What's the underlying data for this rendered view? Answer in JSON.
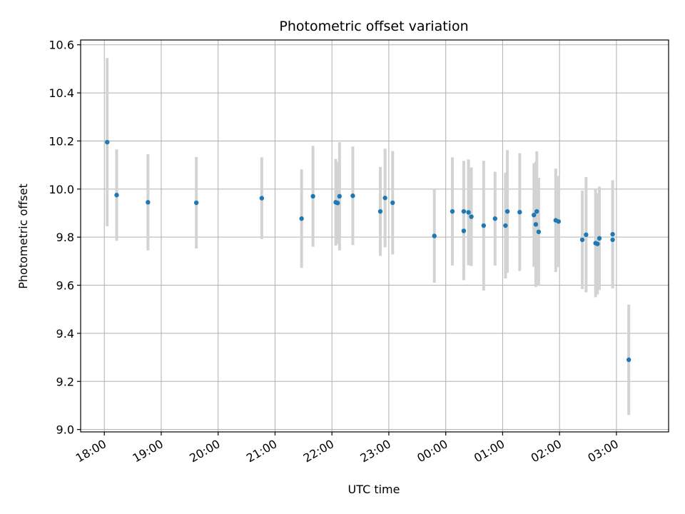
{
  "chart_data": {
    "type": "scatter",
    "title": "Photometric offset variation",
    "xlabel": "UTC time",
    "ylabel": "Photometric offset",
    "grid": true,
    "legend": "none",
    "x_range": [
      "2000-01-01T17:35",
      "2000-01-02T03:55"
    ],
    "ylim": [
      8.99,
      10.62
    ],
    "x_ticks": [
      {
        "t": "2000-01-01T18:00",
        "label": "18:00"
      },
      {
        "t": "2000-01-01T19:00",
        "label": "19:00"
      },
      {
        "t": "2000-01-01T20:00",
        "label": "20:00"
      },
      {
        "t": "2000-01-01T21:00",
        "label": "21:00"
      },
      {
        "t": "2000-01-01T22:00",
        "label": "22:00"
      },
      {
        "t": "2000-01-01T23:00",
        "label": "23:00"
      },
      {
        "t": "2000-01-02T00:00",
        "label": "00:00"
      },
      {
        "t": "2000-01-02T01:00",
        "label": "01:00"
      },
      {
        "t": "2000-01-02T02:00",
        "label": "02:00"
      },
      {
        "t": "2000-01-02T03:00",
        "label": "03:00"
      }
    ],
    "y_ticks": [
      {
        "v": 9.0,
        "label": "9.0"
      },
      {
        "v": 9.2,
        "label": "9.2"
      },
      {
        "v": 9.4,
        "label": "9.4"
      },
      {
        "v": 9.6,
        "label": "9.6"
      },
      {
        "v": 9.8,
        "label": "9.8"
      },
      {
        "v": 10.0,
        "label": "10.0"
      },
      {
        "v": 10.2,
        "label": "10.2"
      },
      {
        "v": 10.4,
        "label": "10.4"
      },
      {
        "v": 10.6,
        "label": "10.6"
      }
    ],
    "colors": {
      "point": "#1f77b4",
      "errorbar": "#d3d3d3",
      "grid": "#b0b0b0"
    },
    "points": [
      {
        "t": "2000-01-01T18:03",
        "y": 10.195,
        "yerr": 0.35
      },
      {
        "t": "2000-01-01T18:13",
        "y": 9.975,
        "yerr": 0.19
      },
      {
        "t": "2000-01-01T18:46",
        "y": 9.945,
        "yerr": 0.2
      },
      {
        "t": "2000-01-01T19:37",
        "y": 9.943,
        "yerr": 0.19
      },
      {
        "t": "2000-01-01T20:46",
        "y": 9.962,
        "yerr": 0.17
      },
      {
        "t": "2000-01-01T21:28",
        "y": 9.877,
        "yerr": 0.205
      },
      {
        "t": "2000-01-01T21:40",
        "y": 9.97,
        "yerr": 0.21
      },
      {
        "t": "2000-01-01T22:04",
        "y": 9.945,
        "yerr": 0.18
      },
      {
        "t": "2000-01-01T22:06",
        "y": 9.942,
        "yerr": 0.17
      },
      {
        "t": "2000-01-01T22:08",
        "y": 9.97,
        "yerr": 0.225
      },
      {
        "t": "2000-01-01T22:22",
        "y": 9.972,
        "yerr": 0.205
      },
      {
        "t": "2000-01-01T22:51",
        "y": 9.907,
        "yerr": 0.185
      },
      {
        "t": "2000-01-01T22:56",
        "y": 9.963,
        "yerr": 0.205
      },
      {
        "t": "2000-01-01T23:04",
        "y": 9.943,
        "yerr": 0.215
      },
      {
        "t": "2000-01-01T23:48",
        "y": 9.805,
        "yerr": 0.195
      },
      {
        "t": "2000-01-02T00:07",
        "y": 9.907,
        "yerr": 0.225
      },
      {
        "t": "2000-01-02T00:19",
        "y": 9.907,
        "yerr": 0.21
      },
      {
        "t": "2000-01-02T00:19",
        "y": 9.826,
        "yerr": 0.205
      },
      {
        "t": "2000-01-02T00:24",
        "y": 9.903,
        "yerr": 0.22
      },
      {
        "t": "2000-01-02T00:27",
        "y": 9.885,
        "yerr": 0.205
      },
      {
        "t": "2000-01-02T00:40",
        "y": 9.848,
        "yerr": 0.27
      },
      {
        "t": "2000-01-02T00:52",
        "y": 9.877,
        "yerr": 0.195
      },
      {
        "t": "2000-01-02T01:03",
        "y": 9.848,
        "yerr": 0.22
      },
      {
        "t": "2000-01-02T01:05",
        "y": 9.907,
        "yerr": 0.255
      },
      {
        "t": "2000-01-02T01:18",
        "y": 9.904,
        "yerr": 0.245
      },
      {
        "t": "2000-01-02T01:33",
        "y": 9.892,
        "yerr": 0.215
      },
      {
        "t": "2000-01-02T01:35",
        "y": 9.853,
        "yerr": 0.26
      },
      {
        "t": "2000-01-02T01:36",
        "y": 9.907,
        "yerr": 0.25
      },
      {
        "t": "2000-01-02T01:38",
        "y": 9.822,
        "yerr": 0.225
      },
      {
        "t": "2000-01-02T01:56",
        "y": 9.87,
        "yerr": 0.215
      },
      {
        "t": "2000-01-02T01:59",
        "y": 9.865,
        "yerr": 0.19
      },
      {
        "t": "2000-01-02T02:24",
        "y": 9.789,
        "yerr": 0.205
      },
      {
        "t": "2000-01-02T02:28",
        "y": 9.81,
        "yerr": 0.24
      },
      {
        "t": "2000-01-02T02:38",
        "y": 9.775,
        "yerr": 0.225
      },
      {
        "t": "2000-01-02T02:40",
        "y": 9.772,
        "yerr": 0.21
      },
      {
        "t": "2000-01-02T02:42",
        "y": 9.795,
        "yerr": 0.215
      },
      {
        "t": "2000-01-02T02:56",
        "y": 9.789,
        "yerr": 0.2
      },
      {
        "t": "2000-01-02T02:56",
        "y": 9.812,
        "yerr": 0.225
      },
      {
        "t": "2000-01-02T03:13",
        "y": 9.29,
        "yerr": 0.23
      }
    ]
  }
}
